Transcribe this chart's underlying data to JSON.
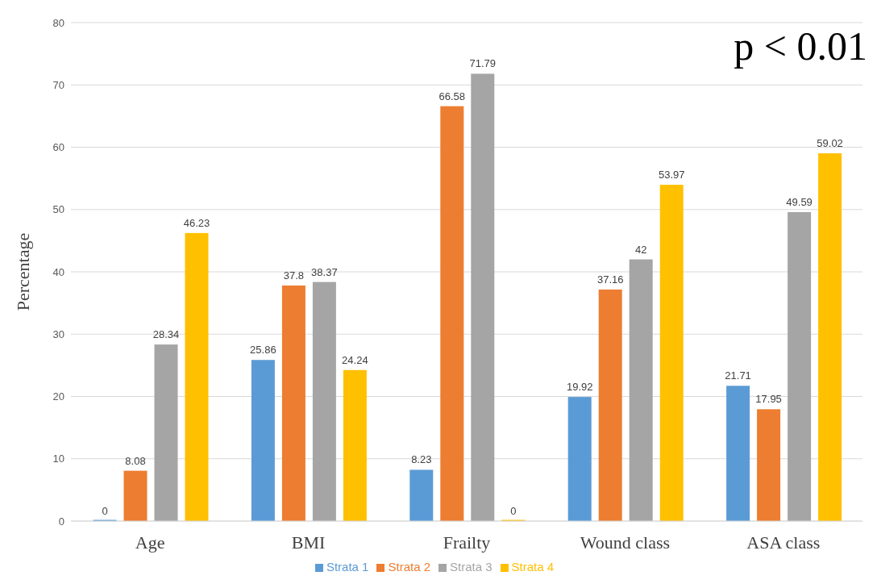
{
  "chart_data": {
    "type": "bar",
    "ylabel": "Percentage",
    "categories": [
      "Age",
      "BMI",
      "Frailty",
      "Wound class",
      "ASA class"
    ],
    "series": [
      {
        "name": "Strata 1",
        "color": "#5b9bd5",
        "values": [
          0,
          25.86,
          8.23,
          19.92,
          21.71
        ]
      },
      {
        "name": "Strata 2",
        "color": "#ed7d31",
        "values": [
          8.08,
          37.8,
          66.58,
          37.16,
          17.95
        ]
      },
      {
        "name": "Strata 3",
        "color": "#a5a5a5",
        "values": [
          28.34,
          38.37,
          71.79,
          42,
          49.59
        ]
      },
      {
        "name": "Strata 4",
        "color": "#ffc000",
        "values": [
          46.23,
          24.24,
          0,
          53.97,
          59.02
        ]
      }
    ],
    "ylim": [
      0,
      80
    ],
    "yticks": [
      0,
      10,
      20,
      30,
      40,
      50,
      60,
      70,
      80
    ],
    "grid": "y",
    "legend": "bottom",
    "data_labels": true,
    "annotations": [
      "p < 0.01"
    ]
  }
}
